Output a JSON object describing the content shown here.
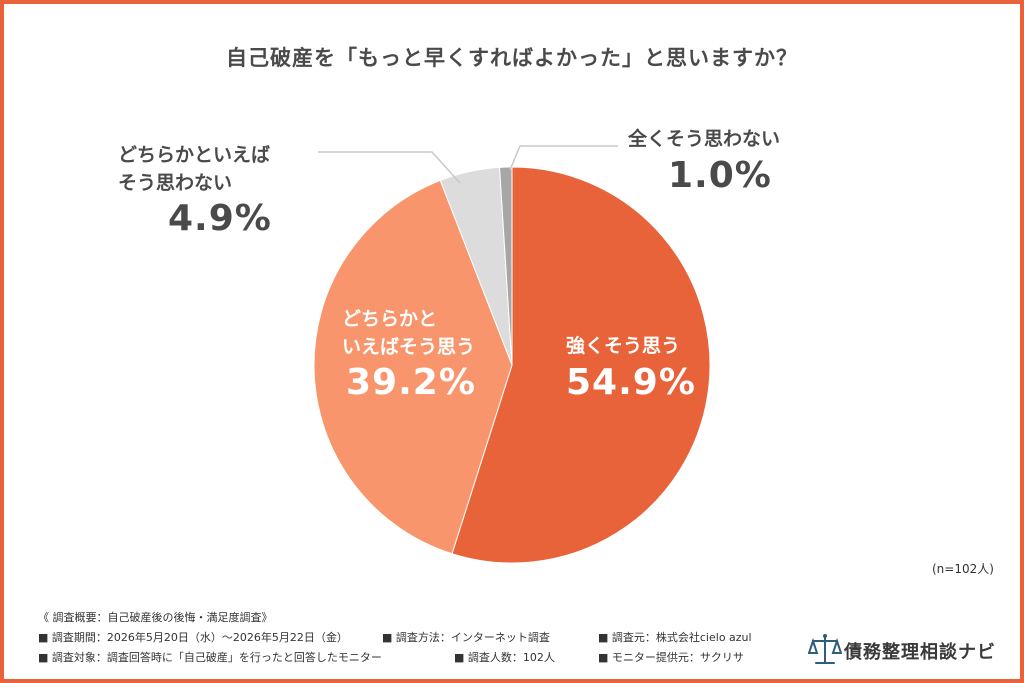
{
  "title": "自己破産を「もっと早くすればよかった」と思いますか？",
  "chart_data": {
    "type": "pie",
    "title": "自己破産を「もっと早くすればよかった」と思いますか？",
    "slices": [
      {
        "label": "強くそう思う",
        "value": 54.9,
        "color": "#e8633a"
      },
      {
        "label": "どちらかといえばそう思う",
        "value": 39.2,
        "color": "#f8956c"
      },
      {
        "label": "どちらかといえばそう思わない",
        "value": 4.9,
        "color": "#dcdcdc"
      },
      {
        "label": "全くそう思わない",
        "value": 1.0,
        "color": "#a6a6a6"
      }
    ]
  },
  "labels": {
    "strong_agree": {
      "line1": "強くそう思う",
      "pct": "54.9%"
    },
    "agree": {
      "line1": "どちらかと",
      "line2": "いえばそう思う",
      "pct": "39.2%"
    },
    "disagree": {
      "line1": "どちらかといえば",
      "line2": "そう思わない",
      "pct": "4.9%"
    },
    "strong_disagree": {
      "line1": "全くそう思わない",
      "pct": "1.0%"
    }
  },
  "sample_note": "(n=102人)",
  "footer": {
    "heading": "《 調査概要：自己破産後の後悔・満足度調査》",
    "period": "■ 調査期間：2026年5月20日（水）～2026年5月22日（金）",
    "method": "■ 調査方法：インターネット調査",
    "source": "■ 調査元：株式会社cielo azul",
    "target": "■ 調査対象：調査回答時に「自己破産」を行ったと回答したモニター",
    "count": "■ 調査人数：102人",
    "provider": "■ モニター提供元：サクリサ"
  },
  "brand": "債務整理相談ナビ",
  "colors": {
    "accent": "#e8633a",
    "text_gray": "#4a4a4a"
  }
}
